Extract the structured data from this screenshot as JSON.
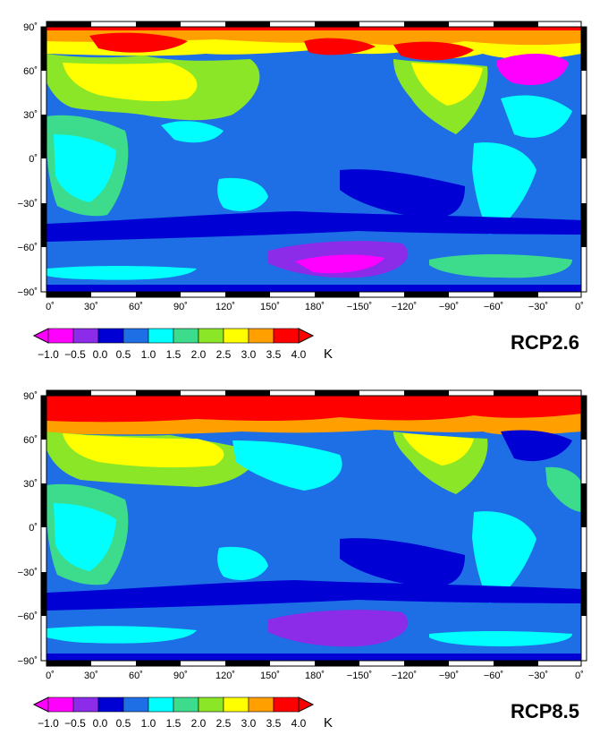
{
  "colors": {
    "levels": [
      "#ff00ff",
      "#8c2be8",
      "#0000d4",
      "#1e6ee6",
      "#00ffff",
      "#3cdc8c",
      "#8ce628",
      "#ffff00",
      "#ffa000",
      "#ff0000"
    ],
    "ocean": "#1e6ee6",
    "frame_dark": "#000000"
  },
  "colorbar": {
    "ticks": [
      "−1.0",
      "−0.5",
      "0.0",
      "0.5",
      "1.0",
      "1.5",
      "2.0",
      "2.5",
      "3.0",
      "3.5",
      "4.0"
    ],
    "unit": "K"
  },
  "axes": {
    "x_ticks": [
      "0˚",
      "30˚",
      "60˚",
      "90˚",
      "120˚",
      "150˚",
      "180˚",
      "−150˚",
      "−120˚",
      "−90˚",
      "−60˚",
      "−30˚",
      "0˚"
    ],
    "y_ticks": [
      "90˚",
      "60˚",
      "30˚",
      "0˚",
      "−30˚",
      "−60˚",
      "−90˚"
    ]
  },
  "panels": [
    {
      "scenario": "RCP2.6"
    },
    {
      "scenario": "RCP8.5"
    }
  ]
}
